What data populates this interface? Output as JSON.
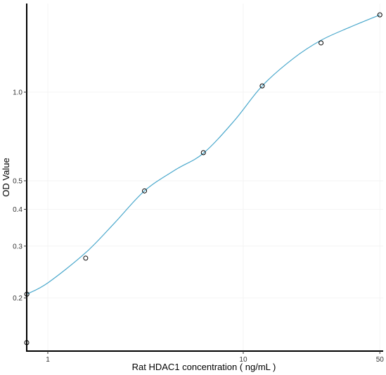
{
  "chart_data": {
    "type": "scatter",
    "xlabel": "Rat HDAC1 concentration ( ng/mL )",
    "ylabel": "OD Value",
    "x_scale": "log",
    "y_scale": "log",
    "xlim": [
      0.78,
      52
    ],
    "ylim": [
      0.132,
      2.0
    ],
    "x_ticks": [
      1,
      10,
      50
    ],
    "x_tick_labels": [
      "1",
      "10",
      "50"
    ],
    "y_ticks": [
      0.2,
      0.3,
      0.4,
      0.5,
      1.0
    ],
    "y_tick_labels": [
      "0.2",
      "0.3",
      "0.4",
      "0.5",
      "1.0"
    ],
    "grid": true,
    "points": {
      "x": [
        0.78,
        0.78125,
        1.5625,
        3.125,
        6.25,
        12.5,
        25,
        50
      ],
      "y": [
        0.141,
        0.206,
        0.273,
        0.462,
        0.623,
        1.05,
        1.47,
        1.83
      ]
    },
    "fit_curve": {
      "x": [
        0.78125,
        1.0,
        1.5625,
        2.2,
        3.125,
        4.5,
        6.25,
        9.0,
        12.5,
        18.0,
        25,
        35,
        50
      ],
      "y": [
        0.206,
        0.225,
        0.285,
        0.36,
        0.462,
        0.545,
        0.62,
        0.8,
        1.05,
        1.3,
        1.5,
        1.66,
        1.83
      ]
    },
    "colors": {
      "fit_line": "#4aa8cc",
      "points": "#000000",
      "axis": "#000000",
      "grid": "#f2f2f2"
    }
  }
}
